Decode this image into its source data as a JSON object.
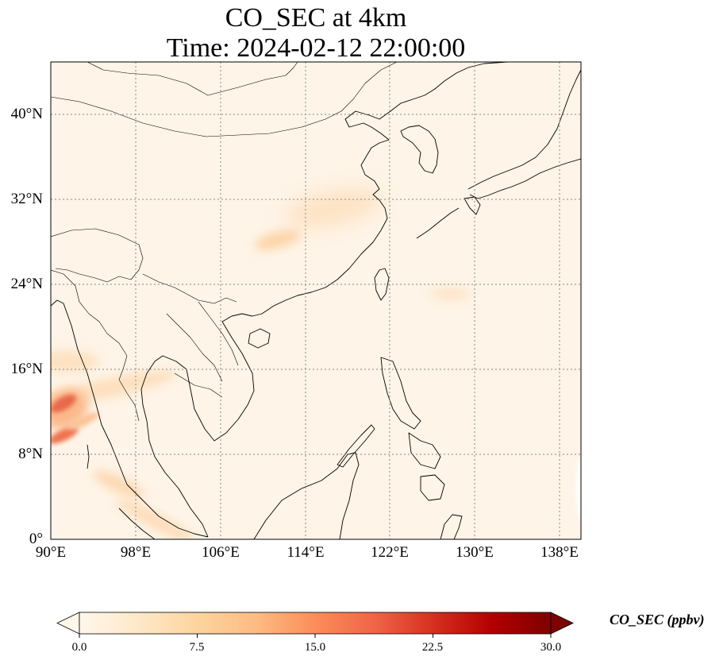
{
  "title": {
    "line1": "CO_SEC at 4km",
    "line2": "Time: 2024-02-12 22:00:00"
  },
  "map": {
    "projection": "PlateCarree",
    "lon_range": [
      90,
      140
    ],
    "lat_range": [
      0,
      45
    ],
    "lat_ticks": [
      {
        "value": 0,
        "label": "0°"
      },
      {
        "value": 8,
        "label": "8°N"
      },
      {
        "value": 16,
        "label": "16°N"
      },
      {
        "value": 24,
        "label": "24°N"
      },
      {
        "value": 32,
        "label": "32°N"
      },
      {
        "value": 40,
        "label": "40°N"
      }
    ],
    "lon_ticks": [
      {
        "value": 90,
        "label": "90°E"
      },
      {
        "value": 98,
        "label": "98°E"
      },
      {
        "value": 106,
        "label": "106°E"
      },
      {
        "value": 114,
        "label": "114°E"
      },
      {
        "value": 122,
        "label": "122°E"
      },
      {
        "value": 130,
        "label": "130°E"
      },
      {
        "value": 138,
        "label": "138°E"
      }
    ],
    "gridlines": "dotted",
    "features": [
      "coastlines",
      "country borders"
    ]
  },
  "colorbar": {
    "label": "CO_SEC (ppbv)",
    "colormap": "OrRd",
    "min": 0,
    "max": 30,
    "extend": "both",
    "ticks": [
      "0.0",
      "7.5",
      "15.0",
      "22.5",
      "30.0"
    ],
    "colors": [
      "#fff7ec",
      "#fee8c8",
      "#fdd49e",
      "#fdbb84",
      "#fc8d59",
      "#ef6548",
      "#d7301f",
      "#b30000",
      "#7f0000"
    ]
  },
  "field": {
    "background_value_ppbv": 1,
    "features": [
      {
        "name": "southwest plume core",
        "lon": 90.8,
        "lat": 12.7,
        "value_ppbv": 13
      },
      {
        "name": "southwest plume lower core",
        "lon": 90.8,
        "lat": 9.5,
        "value_ppbv": 11
      },
      {
        "name": "Indochina westerly band",
        "lon": 96,
        "lat": 14,
        "value_ppbv": 4
      },
      {
        "name": "Malay Peninsula patch",
        "lon": 97,
        "lat": 4,
        "value_ppbv": 5
      },
      {
        "name": "Sumatra band",
        "lon": 99,
        "lat": 1,
        "value_ppbv": 4
      },
      {
        "name": "East China patch",
        "lon": 116,
        "lat": 31.5,
        "value_ppbv": 4
      },
      {
        "name": "South China patch",
        "lon": 111.5,
        "lat": 28,
        "value_ppbv": 5
      },
      {
        "name": "Philippine Sea patch",
        "lon": 128.5,
        "lat": 23,
        "value_ppbv": 3
      }
    ]
  }
}
